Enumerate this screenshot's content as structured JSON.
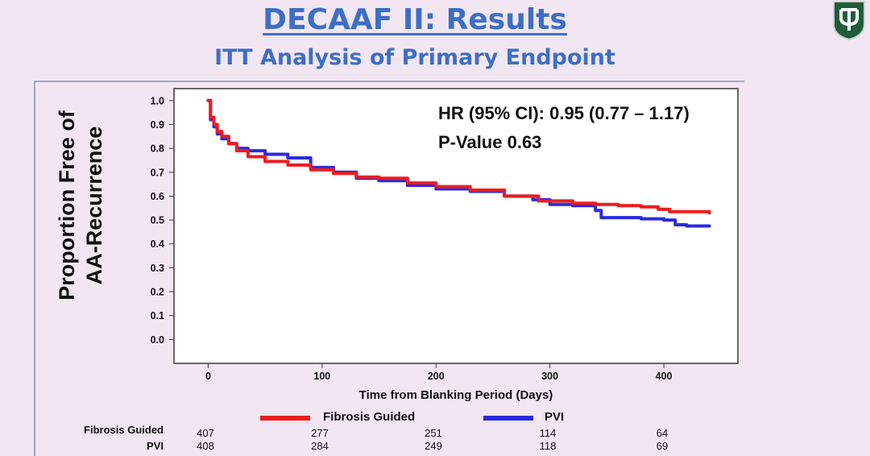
{
  "slide": {
    "title": "DECAAF II: Results",
    "subtitle": "ITT Analysis of Primary Endpoint",
    "logo_icon": "university-shield-logo"
  },
  "colors": {
    "title": "#3d6fc4",
    "fibrosis": "#ee1c1c",
    "pvi": "#2a2ae0",
    "background": "#f3e6f3"
  },
  "chart_data": {
    "type": "line",
    "title": "",
    "xlabel": "Time from Blanking Period (Days)",
    "ylabel_lines": [
      "Proportion Free of",
      "AA-Recurrence"
    ],
    "xlim": [
      -30,
      465
    ],
    "ylim": [
      -0.1,
      1.05
    ],
    "x_ticks": [
      0,
      100,
      200,
      300,
      400
    ],
    "y_ticks": [
      0.0,
      0.1,
      0.2,
      0.3,
      0.4,
      0.5,
      0.6,
      0.7,
      0.8,
      0.9,
      1.0
    ],
    "y_tick_labels": [
      "0.0",
      "0.1",
      "0.2",
      "0.3",
      "0.4",
      "0.5",
      "0.6",
      "0.7",
      "0.8",
      "0.9",
      "1.0"
    ],
    "legend_position": "bottom",
    "annotations": [
      "HR (95% CI): 0.95 (0.77 – 1.17)",
      "P-Value 0.63"
    ],
    "series": [
      {
        "name": "Fibrosis Guided",
        "color": "#ee1c1c",
        "x": [
          0,
          2,
          5,
          8,
          12,
          18,
          25,
          35,
          50,
          70,
          90,
          110,
          130,
          150,
          175,
          200,
          230,
          260,
          290,
          320,
          340,
          360,
          380,
          395,
          405,
          420,
          440
        ],
        "y": [
          1.0,
          0.93,
          0.9,
          0.87,
          0.85,
          0.82,
          0.79,
          0.765,
          0.745,
          0.73,
          0.71,
          0.695,
          0.68,
          0.675,
          0.655,
          0.64,
          0.625,
          0.6,
          0.58,
          0.57,
          0.565,
          0.56,
          0.555,
          0.545,
          0.535,
          0.535,
          0.53
        ]
      },
      {
        "name": "PVI",
        "color": "#2a2ae0",
        "x": [
          0,
          2,
          5,
          8,
          12,
          18,
          25,
          35,
          50,
          70,
          90,
          110,
          130,
          150,
          175,
          200,
          230,
          260,
          285,
          300,
          320,
          340,
          345,
          360,
          380,
          400,
          410,
          420,
          440
        ],
        "y": [
          1.0,
          0.92,
          0.89,
          0.86,
          0.84,
          0.82,
          0.8,
          0.79,
          0.775,
          0.76,
          0.72,
          0.7,
          0.675,
          0.665,
          0.645,
          0.63,
          0.62,
          0.6,
          0.585,
          0.565,
          0.56,
          0.54,
          0.51,
          0.51,
          0.505,
          0.5,
          0.48,
          0.475,
          0.475
        ]
      }
    ]
  },
  "risk_table": {
    "rows": [
      {
        "label": "Fibrosis Guided",
        "values": [
          "407",
          "277",
          "251",
          "114",
          "64"
        ]
      },
      {
        "label": "PVI",
        "values": [
          "408",
          "284",
          "249",
          "118",
          "69"
        ]
      }
    ]
  }
}
